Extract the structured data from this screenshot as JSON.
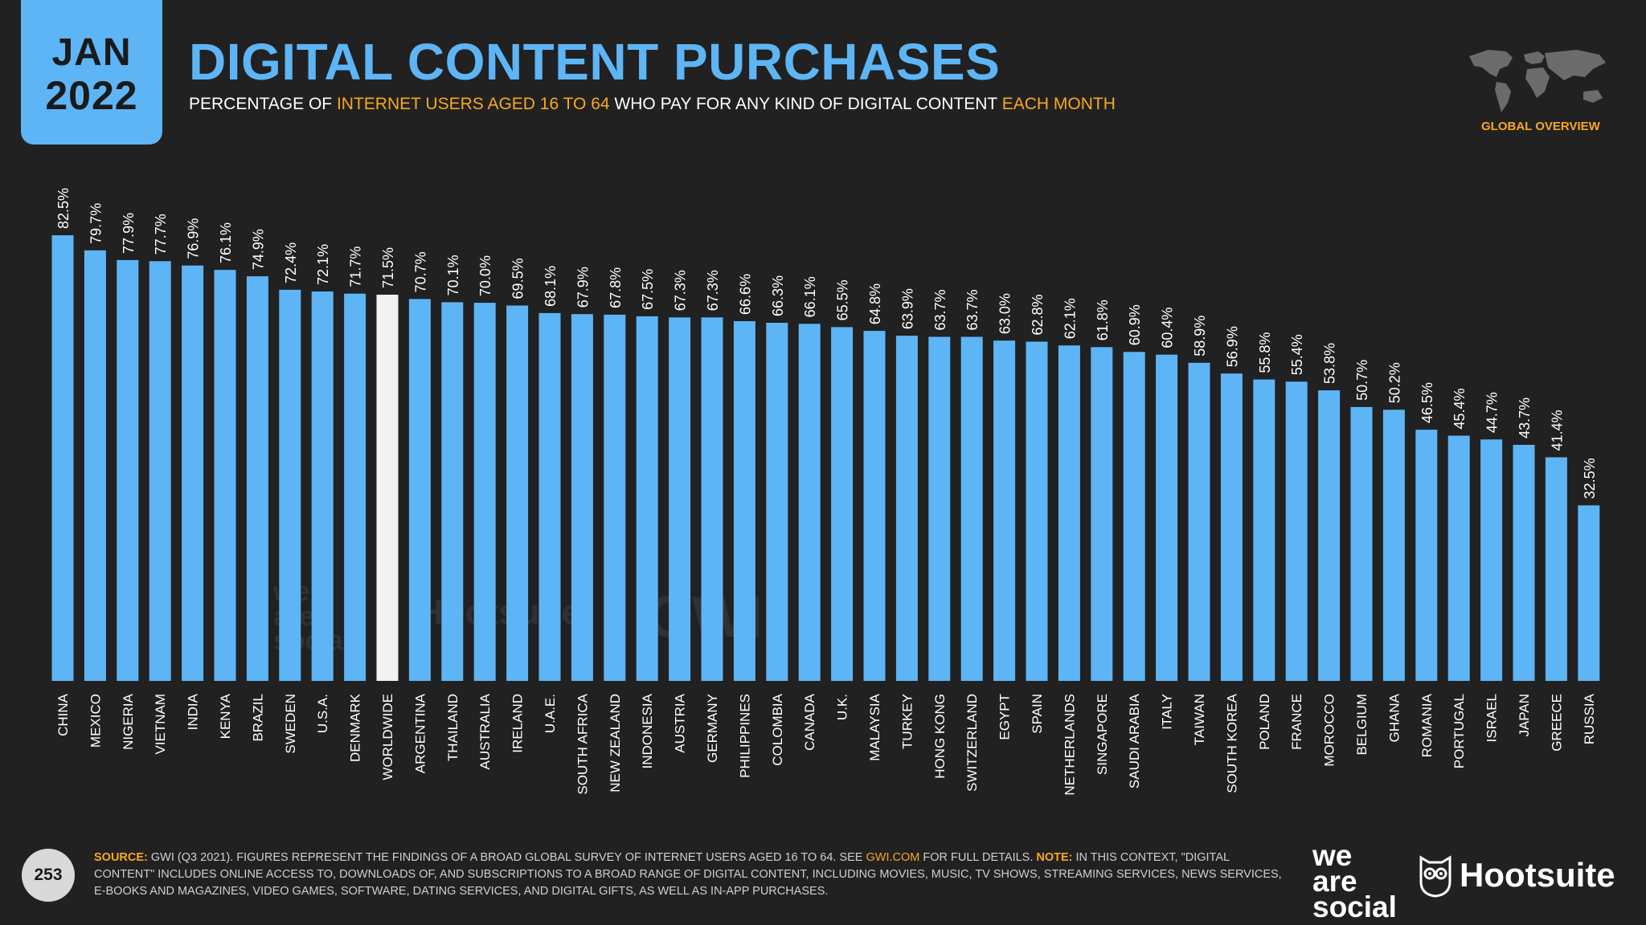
{
  "header": {
    "month": "JAN",
    "year": "2022",
    "title": "DIGITAL CONTENT PURCHASES",
    "subtitle_parts": [
      "PERCENTAGE OF ",
      "INTERNET USERS AGED 16 TO 64",
      " WHO PAY FOR ANY KIND OF DIGITAL CONTENT ",
      "EACH MONTH"
    ],
    "section_label": "GLOBAL OVERVIEW"
  },
  "colors": {
    "accent_blue": "#5eb5f6",
    "highlight_white": "#f2f2f2",
    "accent_orange": "#f7a823",
    "background": "#212121"
  },
  "chart_data": {
    "type": "bar",
    "categories": [
      "CHINA",
      "MEXICO",
      "NIGERIA",
      "VIETNAM",
      "INDIA",
      "KENYA",
      "BRAZIL",
      "SWEDEN",
      "U.S.A.",
      "DENMARK",
      "WORLDWIDE",
      "ARGENTINA",
      "THAILAND",
      "AUSTRALIA",
      "IRELAND",
      "U.A.E.",
      "SOUTH AFRICA",
      "NEW ZEALAND",
      "INDONESIA",
      "AUSTRIA",
      "GERMANY",
      "PHILIPPINES",
      "COLOMBIA",
      "CANADA",
      "U.K.",
      "MALAYSIA",
      "TURKEY",
      "HONG KONG",
      "SWITZERLAND",
      "EGYPT",
      "SPAIN",
      "NETHERLANDS",
      "SINGAPORE",
      "SAUDI ARABIA",
      "ITALY",
      "TAIWAN",
      "SOUTH KOREA",
      "POLAND",
      "FRANCE",
      "MOROCCO",
      "BELGIUM",
      "GHANA",
      "ROMANIA",
      "PORTUGAL",
      "ISRAEL",
      "JAPAN",
      "GREECE",
      "RUSSIA"
    ],
    "values": [
      82.5,
      79.7,
      77.9,
      77.7,
      76.9,
      76.1,
      74.9,
      72.4,
      72.1,
      71.7,
      71.5,
      70.7,
      70.1,
      70.0,
      69.5,
      68.1,
      67.9,
      67.8,
      67.5,
      67.3,
      67.3,
      66.6,
      66.3,
      66.1,
      65.5,
      64.8,
      63.9,
      63.7,
      63.7,
      63.0,
      62.8,
      62.1,
      61.8,
      60.9,
      60.4,
      58.9,
      56.9,
      55.8,
      55.4,
      53.8,
      50.7,
      50.2,
      46.5,
      45.4,
      44.7,
      43.7,
      41.4,
      32.5
    ],
    "labels": [
      "82.5%",
      "79.7%",
      "77.9%",
      "77.7%",
      "76.9%",
      "76.1%",
      "74.9%",
      "72.4%",
      "72.1%",
      "71.7%",
      "71.5%",
      "70.7%",
      "70.1%",
      "70.0%",
      "69.5%",
      "68.1%",
      "67.9%",
      "67.8%",
      "67.5%",
      "67.3%",
      "67.3%",
      "66.6%",
      "66.3%",
      "66.1%",
      "65.5%",
      "64.8%",
      "63.9%",
      "63.7%",
      "63.7%",
      "63.0%",
      "62.8%",
      "62.1%",
      "61.8%",
      "60.9%",
      "60.4%",
      "58.9%",
      "56.9%",
      "55.8%",
      "55.4%",
      "53.8%",
      "50.7%",
      "50.2%",
      "46.5%",
      "45.4%",
      "44.7%",
      "43.7%",
      "41.4%",
      "32.5%"
    ],
    "highlight_category": "WORLDWIDE",
    "ylim": [
      0,
      82.5
    ],
    "grid": false,
    "legend": "none"
  },
  "watermarks": {
    "social": [
      "we",
      "are",
      "social"
    ],
    "hootsuite": "Hootsuite",
    "gwi": "GWI."
  },
  "footer": {
    "page_number": "253",
    "source_label": "SOURCE:",
    "source_text": " GWI (Q3 2021). FIGURES REPRESENT THE FINDINGS OF A BROAD GLOBAL SURVEY OF INTERNET USERS AGED 16 TO 64. SEE ",
    "source_link": "GWI.COM",
    "source_text_2": " FOR FULL DETAILS. ",
    "note_label": "NOTE:",
    "note_text": " IN THIS CONTEXT, \"DIGITAL CONTENT\" INCLUDES ONLINE ACCESS TO, DOWNLOADS OF, AND SUBSCRIPTIONS TO A BROAD RANGE OF DIGITAL CONTENT, INCLUDING MOVIES, MUSIC, TV SHOWS, STREAMING SERVICES, NEWS SERVICES, E-BOOKS AND MAGAZINES, VIDEO GAMES, SOFTWARE, DATING SERVICES, AND DIGITAL GIFTS, AS WELL AS IN-APP PURCHASES.",
    "logo_was": [
      "we",
      "are",
      "social"
    ],
    "logo_hootsuite": "Hootsuite"
  }
}
